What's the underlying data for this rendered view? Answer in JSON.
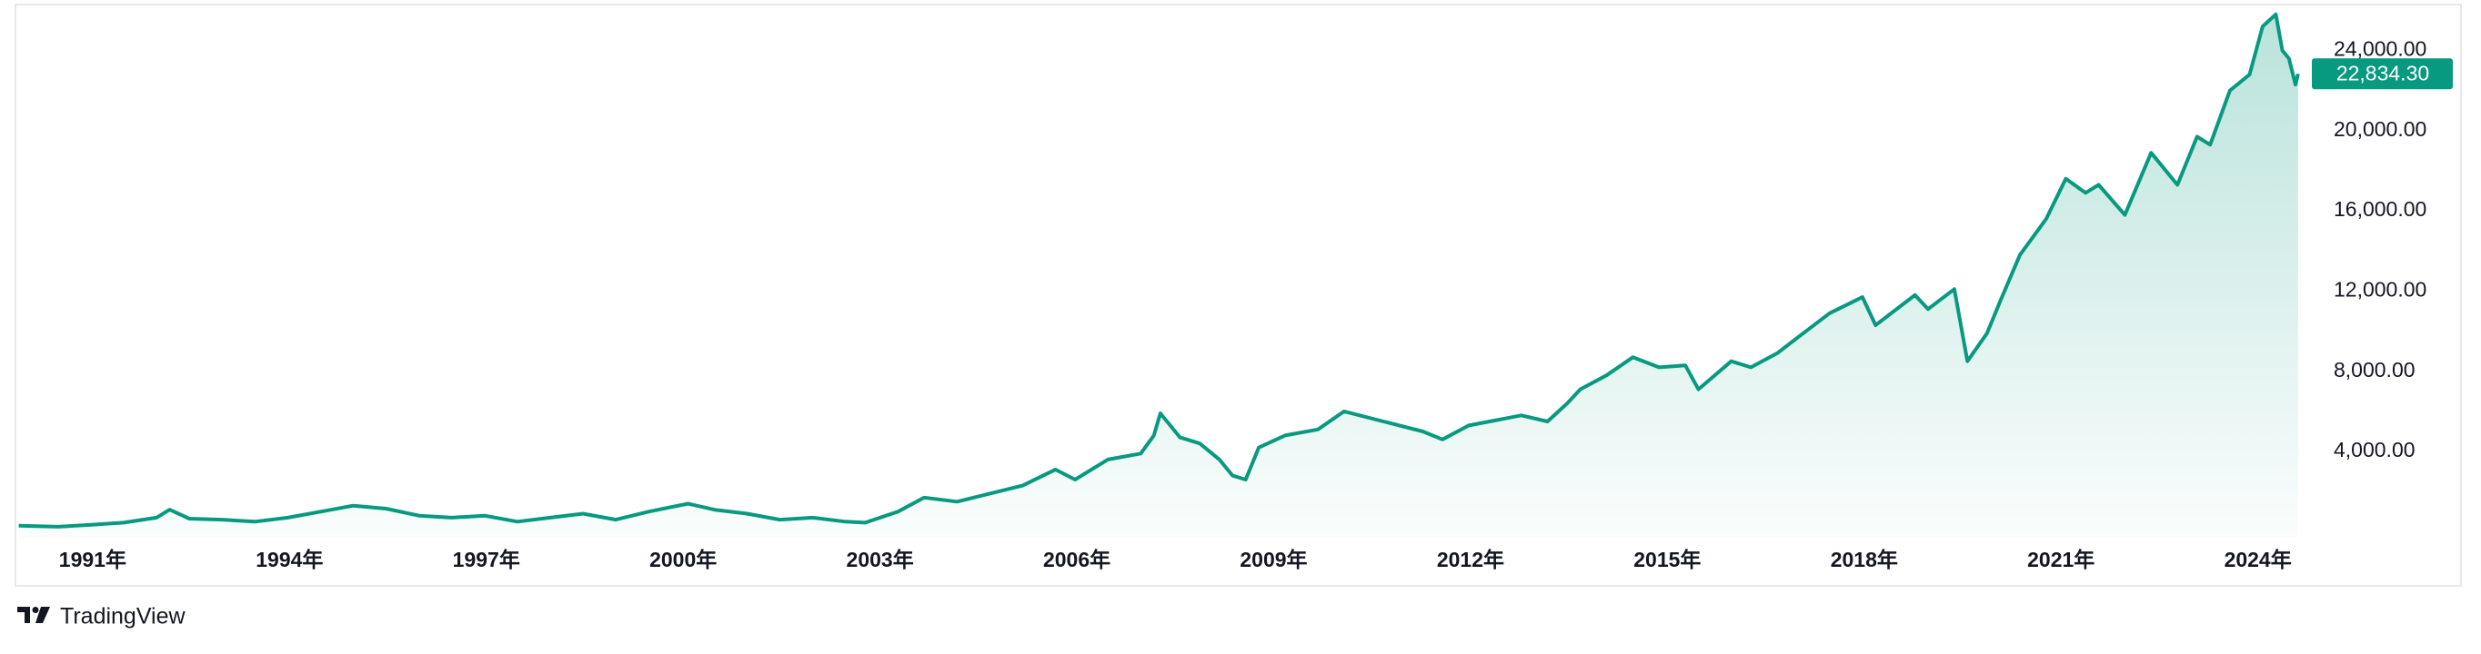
{
  "chart_data": {
    "type": "line",
    "x": [
      1990.4,
      1991.0,
      1991.5,
      1992.0,
      1992.5,
      1992.7,
      1993.0,
      1993.5,
      1994.0,
      1994.5,
      1995.0,
      1995.5,
      1996.0,
      1996.5,
      1997.0,
      1997.5,
      1998.0,
      1998.5,
      1999.0,
      1999.5,
      2000.0,
      2000.6,
      2001.0,
      2001.5,
      2002.0,
      2002.5,
      2003.0,
      2003.3,
      2003.8,
      2004.2,
      2004.7,
      2005.2,
      2005.7,
      2006.2,
      2006.5,
      2007.0,
      2007.5,
      2007.7,
      2007.8,
      2008.1,
      2008.4,
      2008.7,
      2008.9,
      2009.1,
      2009.3,
      2009.7,
      2010.2,
      2010.6,
      2011.2,
      2011.8,
      2012.1,
      2012.5,
      2013.3,
      2013.7,
      2014.0,
      2014.2,
      2014.6,
      2015.0,
      2015.4,
      2015.8,
      2016.0,
      2016.5,
      2016.8,
      2017.2,
      2017.6,
      2018.0,
      2018.5,
      2018.7,
      2019.3,
      2019.5,
      2019.9,
      2020.1,
      2020.4,
      2020.6,
      2020.9,
      2021.3,
      2021.6,
      2021.9,
      2022.1,
      2022.5,
      2022.9,
      2023.3,
      2023.6,
      2023.8,
      2024.1,
      2024.4,
      2024.6,
      2024.8,
      2024.9,
      2025.0,
      2025.1,
      2025.14
    ],
    "series": [
      {
        "color": "#089981",
        "values": [
          300,
          250,
          350,
          450,
          700,
          1100,
          650,
          600,
          500,
          700,
          1000,
          1300,
          1150,
          800,
          700,
          800,
          500,
          700,
          900,
          600,
          1000,
          1400,
          1100,
          900,
          600,
          700,
          500,
          450,
          1000,
          1700,
          1500,
          1900,
          2300,
          3100,
          2600,
          3600,
          3900,
          4800,
          5900,
          4700,
          4400,
          3600,
          2800,
          2600,
          4200,
          4800,
          5100,
          6000,
          5500,
          5000,
          4600,
          5300,
          5800,
          5500,
          6400,
          7100,
          7800,
          8700,
          8200,
          8300,
          7100,
          8500,
          8200,
          8900,
          9900,
          10900,
          11700,
          10300,
          11800,
          11100,
          12100,
          8500,
          9900,
          11500,
          13800,
          15600,
          17600,
          16900,
          17300,
          15800,
          18900,
          17300,
          19700,
          19300,
          22000,
          22800,
          25200,
          25800,
          24000,
          23600,
          22300,
          22834.3
        ]
      }
    ],
    "price_label": {
      "value": 22834.3,
      "label": "22,834.30"
    },
    "xlim": [
      1990.35,
      2025.28
    ],
    "xticks": [
      {
        "value": 1991,
        "label": "1991年"
      },
      {
        "value": 1994,
        "label": "1994年"
      },
      {
        "value": 1997,
        "label": "1997年"
      },
      {
        "value": 2000,
        "label": "2000年"
      },
      {
        "value": 2003,
        "label": "2003年"
      },
      {
        "value": 2006,
        "label": "2006年"
      },
      {
        "value": 2009,
        "label": "2009年"
      },
      {
        "value": 2012,
        "label": "2012年"
      },
      {
        "value": 2015,
        "label": "2015年"
      },
      {
        "value": 2018,
        "label": "2018年"
      },
      {
        "value": 2021,
        "label": "2021年"
      },
      {
        "value": 2024,
        "label": "2024年"
      }
    ],
    "ylim": [
      -300,
      26200
    ],
    "yticks": [
      {
        "value": 4000,
        "label": "4,000.00"
      },
      {
        "value": 8000,
        "label": "8,000.00"
      },
      {
        "value": 12000,
        "label": "12,000.00"
      },
      {
        "value": 16000,
        "label": "16,000.00"
      },
      {
        "value": 20000,
        "label": "20,000.00"
      },
      {
        "value": 24000,
        "label": "24,000.00"
      }
    ],
    "grid": false,
    "watermark": "TradingView"
  }
}
